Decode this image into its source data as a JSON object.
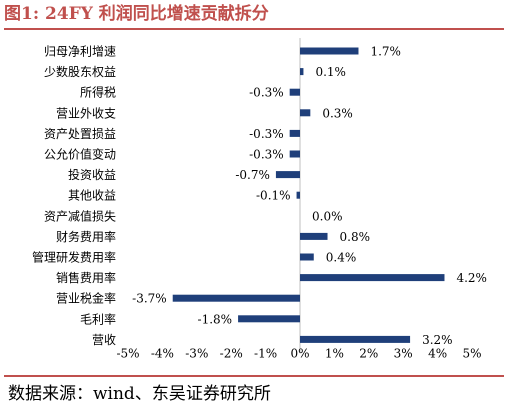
{
  "title": "图1:  24FY 利润同比增速贡献拆分",
  "source": "数据来源：wind、东吴证券研究所",
  "colors": {
    "bar": "#1f3f7a",
    "accent": "#c0504d",
    "grid": "#d9d9d9"
  },
  "chart_data": {
    "type": "bar",
    "orientation": "horizontal",
    "title": "",
    "xlabel": "",
    "ylabel": "",
    "categories": [
      "归母净利增速",
      "少数股东权益",
      "所得税",
      "营业外收支",
      "资产处置损益",
      "公允价值变动",
      "投资收益",
      "其他收益",
      "资产减值损失",
      "财务费用率",
      "管理研发费用率",
      "销售费用率",
      "营业税金率",
      "毛利率",
      "营收"
    ],
    "values": [
      1.7,
      0.1,
      -0.3,
      0.3,
      -0.3,
      -0.3,
      -0.7,
      -0.1,
      0.0,
      0.8,
      0.4,
      4.2,
      -3.7,
      -1.8,
      3.2
    ],
    "data_labels": [
      "1.7%",
      "0.1%",
      "-0.3%",
      "0.3%",
      "-0.3%",
      "-0.3%",
      "-0.7%",
      "-0.1%",
      "0.0%",
      "0.8%",
      "0.4%",
      "4.2%",
      "-3.7%",
      "-1.8%",
      "3.2%"
    ],
    "xlim": [
      -5,
      5
    ],
    "ticks": [
      -5,
      -4,
      -3,
      -2,
      -1,
      0,
      1,
      2,
      3,
      4,
      5
    ],
    "tick_labels": [
      "-5%",
      "-4%",
      "-3%",
      "-2%",
      "-1%",
      "0%",
      "1%",
      "2%",
      "3%",
      "4%",
      "5%"
    ],
    "grid": false,
    "legend": "none"
  }
}
